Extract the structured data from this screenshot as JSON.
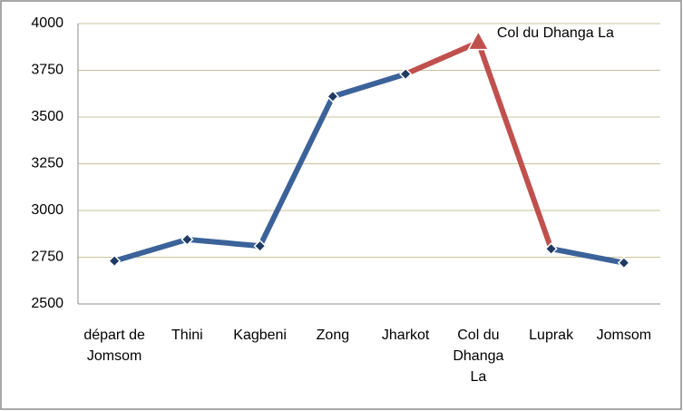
{
  "chart_data": {
    "type": "line",
    "categories": [
      "départ de Jomsom",
      "Thini",
      "Kagbeni",
      "Zong",
      "Jharkot",
      "Col du Dhanga La",
      "Luprak",
      "Jomsom"
    ],
    "values": [
      2730,
      2845,
      2810,
      3610,
      3730,
      3900,
      2795,
      2720
    ],
    "color": "#3b6299",
    "highlight": {
      "index": 5,
      "color": "#c0504d"
    },
    "annotation": "Col du Dhanga La",
    "ylim": [
      2500,
      4000
    ],
    "yticks": [
      2500,
      2750,
      3000,
      3250,
      3500,
      3750,
      4000
    ],
    "grid": true
  }
}
